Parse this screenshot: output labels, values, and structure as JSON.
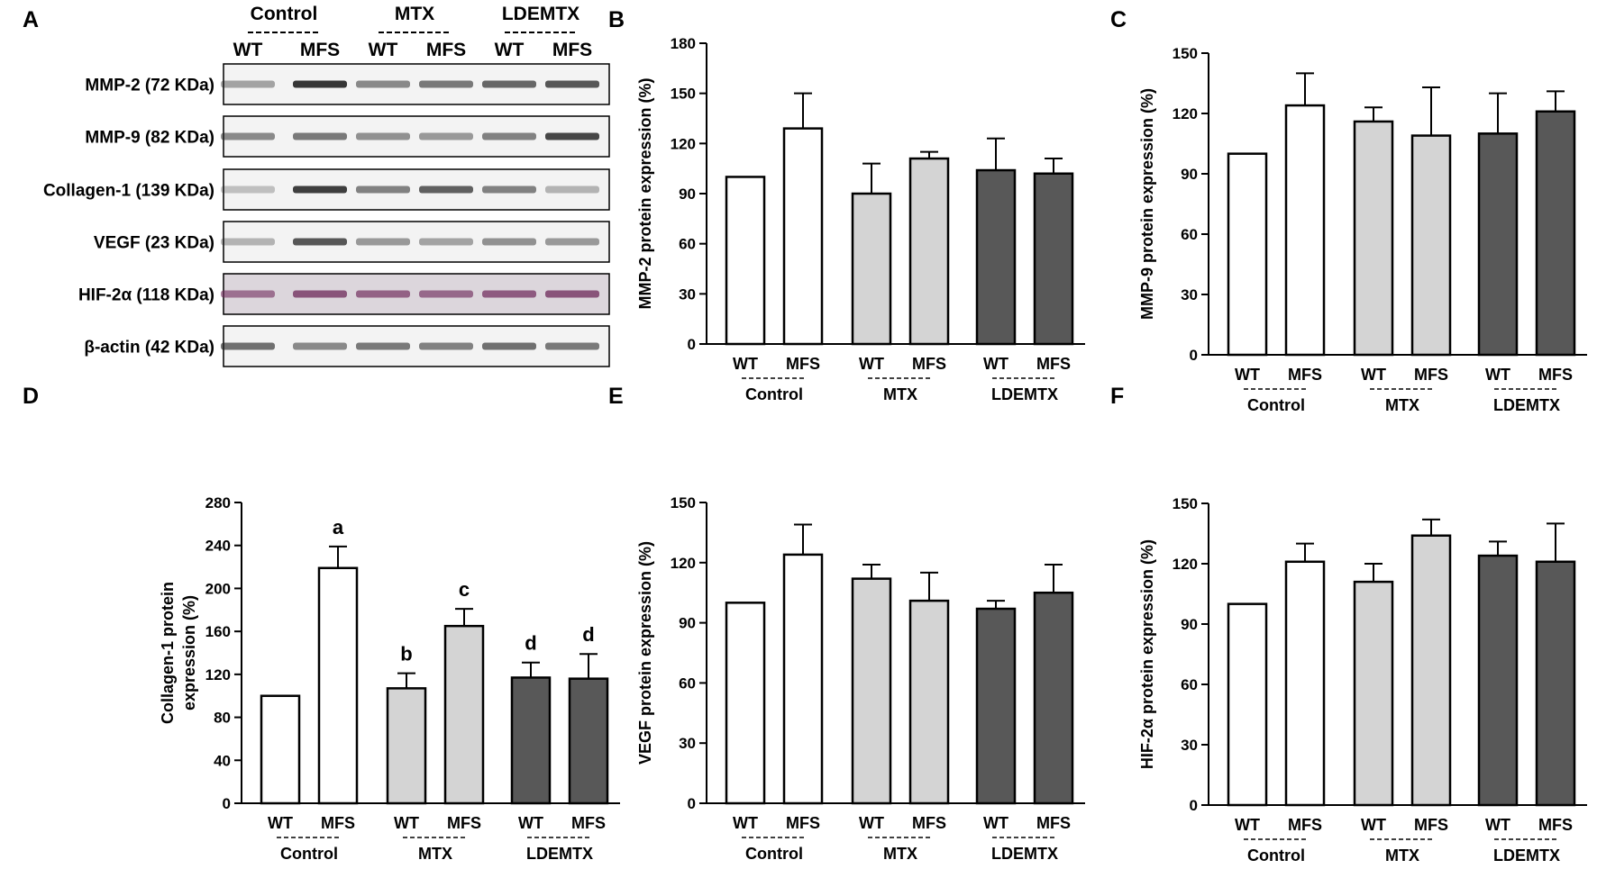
{
  "panel_labels": [
    "A",
    "B",
    "C",
    "D",
    "E",
    "F"
  ],
  "blot": {
    "group_headers": [
      "Control",
      "MTX",
      "LDEMTX"
    ],
    "lane_labels": [
      "WT",
      "MFS",
      "WT",
      "MFS",
      "WT",
      "MFS"
    ],
    "rows": [
      {
        "label": "MMP-2 (72 KDa)",
        "intensity": [
          0.3,
          0.95,
          0.45,
          0.55,
          0.65,
          0.75
        ]
      },
      {
        "label": "MMP-9 (82 KDa)",
        "intensity": [
          0.45,
          0.55,
          0.4,
          0.35,
          0.5,
          0.85
        ]
      },
      {
        "label": "Collagen-1 (139 KDa)",
        "intensity": [
          0.12,
          0.9,
          0.5,
          0.7,
          0.5,
          0.2
        ]
      },
      {
        "label": "VEGF (23 KDa)",
        "intensity": [
          0.2,
          0.75,
          0.35,
          0.3,
          0.4,
          0.35
        ]
      },
      {
        "label": "HIF-2α (118 KDa)",
        "intensity": [
          0.55,
          0.75,
          0.65,
          0.6,
          0.7,
          0.75
        ]
      },
      {
        "label": "β-actin (42 KDa)",
        "intensity": [
          0.6,
          0.45,
          0.55,
          0.5,
          0.6,
          0.55
        ]
      }
    ]
  },
  "chart_data": [
    {
      "panel": "B",
      "type": "bar",
      "ylabel": "MMP-2 protein expression (%)",
      "categories": [
        "WT",
        "MFS",
        "WT",
        "MFS",
        "WT",
        "MFS"
      ],
      "groups": [
        "Control",
        "MTX",
        "LDEMTX"
      ],
      "values": [
        100,
        129,
        90,
        111,
        104,
        102
      ],
      "errors": [
        0,
        21,
        18,
        4,
        19,
        9
      ],
      "letters": [
        "",
        "",
        "",
        "",
        "",
        ""
      ],
      "fill_colors": [
        "#ffffff",
        "#ffffff",
        "#d4d4d4",
        "#d4d4d4",
        "#585858",
        "#585858"
      ],
      "yticks": [
        0,
        30,
        60,
        90,
        120,
        150,
        180
      ],
      "ylim": [
        0,
        180
      ]
    },
    {
      "panel": "C",
      "type": "bar",
      "ylabel": "MMP-9 protein expression (%)",
      "categories": [
        "WT",
        "MFS",
        "WT",
        "MFS",
        "WT",
        "MFS"
      ],
      "groups": [
        "Control",
        "MTX",
        "LDEMTX"
      ],
      "values": [
        100,
        124,
        116,
        109,
        110,
        121
      ],
      "errors": [
        0,
        16,
        7,
        24,
        20,
        10
      ],
      "letters": [
        "",
        "",
        "",
        "",
        "",
        ""
      ],
      "fill_colors": [
        "#ffffff",
        "#ffffff",
        "#d4d4d4",
        "#d4d4d4",
        "#585858",
        "#585858"
      ],
      "yticks": [
        0,
        30,
        60,
        90,
        120,
        150
      ],
      "ylim": [
        0,
        150
      ]
    },
    {
      "panel": "D",
      "type": "bar",
      "ylabel": "Collagen-1 protein expression (%)",
      "ylabel_lines": [
        "Collagen-1 protein",
        "expression (%)"
      ],
      "categories": [
        "WT",
        "MFS",
        "WT",
        "MFS",
        "WT",
        "MFS"
      ],
      "groups": [
        "Control",
        "MTX",
        "LDEMTX"
      ],
      "values": [
        100,
        219,
        107,
        165,
        117,
        116
      ],
      "errors": [
        0,
        20,
        14,
        16,
        14,
        23
      ],
      "letters": [
        "",
        "a",
        "b",
        "c",
        "d",
        "d"
      ],
      "fill_colors": [
        "#ffffff",
        "#ffffff",
        "#d4d4d4",
        "#d4d4d4",
        "#585858",
        "#585858"
      ],
      "yticks": [
        0,
        40,
        80,
        120,
        160,
        200,
        240,
        280
      ],
      "ylim": [
        0,
        280
      ]
    },
    {
      "panel": "E",
      "type": "bar",
      "ylabel": "VEGF protein expression (%)",
      "categories": [
        "WT",
        "MFS",
        "WT",
        "MFS",
        "WT",
        "MFS"
      ],
      "groups": [
        "Control",
        "MTX",
        "LDEMTX"
      ],
      "values": [
        100,
        124,
        112,
        101,
        97,
        105
      ],
      "errors": [
        0,
        15,
        7,
        14,
        4,
        14
      ],
      "letters": [
        "",
        "",
        "",
        "",
        "",
        ""
      ],
      "fill_colors": [
        "#ffffff",
        "#ffffff",
        "#d4d4d4",
        "#d4d4d4",
        "#585858",
        "#585858"
      ],
      "yticks": [
        0,
        30,
        60,
        90,
        120,
        150
      ],
      "ylim": [
        0,
        150
      ]
    },
    {
      "panel": "F",
      "type": "bar",
      "ylabel": "HIF-2α protein expression (%)",
      "categories": [
        "WT",
        "MFS",
        "WT",
        "MFS",
        "WT",
        "MFS"
      ],
      "groups": [
        "Control",
        "MTX",
        "LDEMTX"
      ],
      "values": [
        100,
        121,
        111,
        134,
        124,
        121
      ],
      "errors": [
        0,
        9,
        9,
        8,
        7,
        19
      ],
      "letters": [
        "",
        "",
        "",
        "",
        "",
        ""
      ],
      "fill_colors": [
        "#ffffff",
        "#ffffff",
        "#d4d4d4",
        "#d4d4d4",
        "#585858",
        "#585858"
      ],
      "yticks": [
        0,
        30,
        60,
        90,
        120,
        150
      ],
      "ylim": [
        0,
        150
      ]
    }
  ]
}
